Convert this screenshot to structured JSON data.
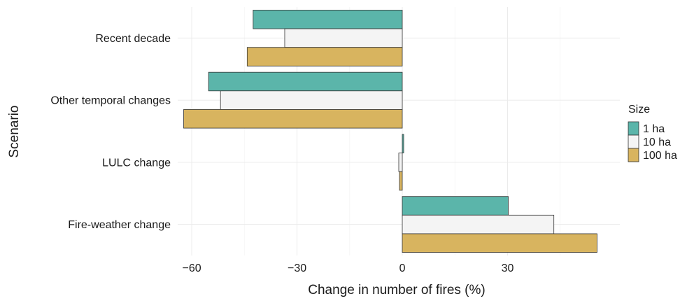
{
  "chart_data": {
    "type": "bar",
    "orientation": "horizontal",
    "categories": [
      "Recent decade",
      "Other temporal changes",
      "LULC change",
      "Fire-weather change"
    ],
    "series": [
      {
        "name": "1 ha",
        "values": [
          -42.5,
          -55.2,
          0.4,
          30.2
        ],
        "color": "#5bb5aa"
      },
      {
        "name": "10 ha",
        "values": [
          -33.5,
          -51.8,
          -1.0,
          43.2
        ],
        "color": "#f4f4f4"
      },
      {
        "name": "100 ha",
        "values": [
          -44.2,
          -62.3,
          -0.8,
          55.5
        ],
        "color": "#d8b45f"
      }
    ],
    "x_ticks": [
      -60,
      -30,
      0,
      30
    ],
    "xlim": [
      -64,
      62
    ],
    "xlabel": "Change in number of fires (%)",
    "ylabel": "Scenario",
    "legend_title": "Size",
    "legend_position": "right",
    "grid": true
  }
}
